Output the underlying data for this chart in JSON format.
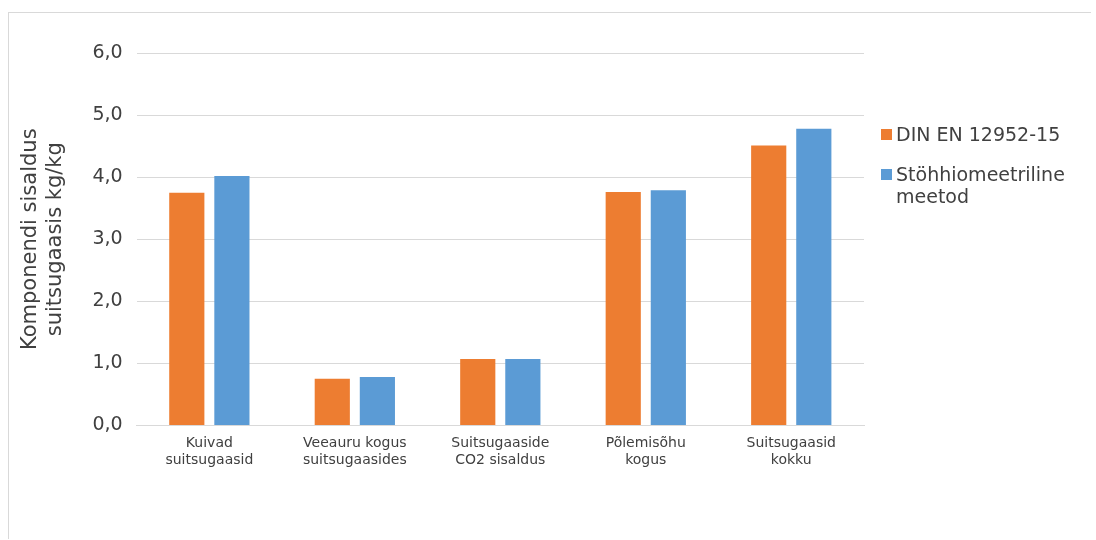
{
  "chart_data": {
    "type": "bar",
    "ylabel": "Komponendi sisaldus suitsugaasis kg/kg",
    "categories": [
      "Kuivad suitsugaasid",
      "Veeauru kogus suitsugaasides",
      "Suitsugaaside CO2 sisaldus",
      "Põlemisõhu kogus",
      "Suitsugaasid kokku"
    ],
    "series": [
      {
        "name": "DIN EN 12952-15",
        "color": "#ed7d31",
        "values": [
          3.75,
          0.75,
          1.07,
          3.76,
          4.51
        ]
      },
      {
        "name": "Stöhhiomeetriline meetod",
        "color": "#5b9bd5",
        "values": [
          4.02,
          0.78,
          1.07,
          3.79,
          4.78
        ]
      }
    ],
    "ylim": [
      0,
      6
    ],
    "yticks": [
      {
        "value": 0,
        "label": "0,0"
      },
      {
        "value": 1,
        "label": "1,0"
      },
      {
        "value": 2,
        "label": "2,0"
      },
      {
        "value": 3,
        "label": "3,0"
      },
      {
        "value": 4,
        "label": "4,0"
      },
      {
        "value": 5,
        "label": "5,0"
      },
      {
        "value": 6,
        "label": "6,0"
      }
    ],
    "grid": "y",
    "legend": "right"
  }
}
